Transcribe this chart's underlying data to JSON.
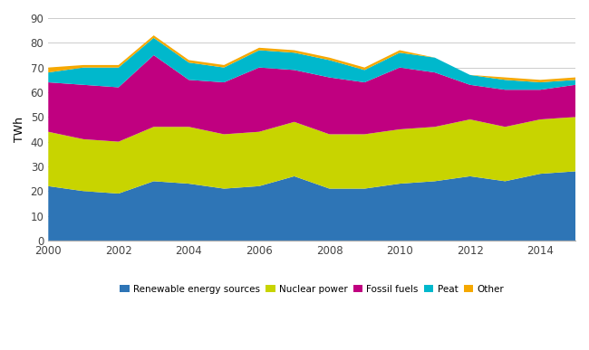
{
  "years": [
    2000,
    2001,
    2002,
    2003,
    2004,
    2005,
    2006,
    2007,
    2008,
    2009,
    2010,
    2011,
    2012,
    2013,
    2014,
    2015
  ],
  "renewable": [
    22,
    20,
    19,
    24,
    23,
    21,
    22,
    26,
    21,
    21,
    23,
    24,
    26,
    24,
    27,
    28
  ],
  "nuclear": [
    22,
    21,
    21,
    22,
    23,
    22,
    22,
    22,
    22,
    22,
    22,
    22,
    23,
    22,
    22,
    22
  ],
  "fossil": [
    20,
    22,
    22,
    29,
    19,
    21,
    26,
    21,
    23,
    21,
    25,
    22,
    14,
    15,
    12,
    13
  ],
  "peat": [
    4,
    7,
    8,
    7,
    7,
    6,
    7,
    7,
    7,
    5,
    6,
    6,
    4,
    4,
    3,
    2
  ],
  "other": [
    2,
    1,
    1,
    1,
    1,
    1,
    1,
    1,
    1,
    1,
    1,
    0,
    0,
    1,
    1,
    1
  ],
  "colors": {
    "renewable": "#2e75b6",
    "nuclear": "#c8d400",
    "fossil": "#c00080",
    "peat": "#00b8cc",
    "other": "#f5a800"
  },
  "labels": {
    "renewable": "Renewable energy sources",
    "nuclear": "Nuclear power",
    "fossil": "Fossil fuels",
    "peat": "Peat",
    "other": "Other"
  },
  "ylabel": "TWh",
  "ylim": [
    0,
    90
  ],
  "yticks": [
    0,
    10,
    20,
    30,
    40,
    50,
    60,
    70,
    80,
    90
  ],
  "xlim": [
    2000,
    2015
  ],
  "xticks": [
    2000,
    2002,
    2004,
    2006,
    2008,
    2010,
    2012,
    2014
  ]
}
